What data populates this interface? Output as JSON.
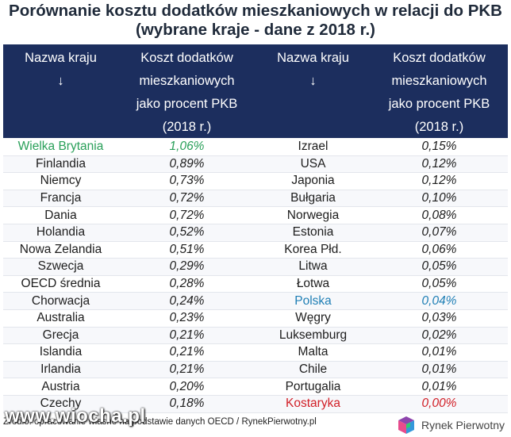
{
  "title_line1": "Porównanie kosztu dodatków mieszkaniowych w relacji do PKB",
  "title_line2": "(wybrane kraje - dane z 2018 r.)",
  "headers": {
    "country": "Nazwa kraju",
    "arrow": "↓",
    "cost_l1": "Koszt dodatków",
    "cost_l2": "mieszkaniowych",
    "cost_l3": "jako procent PKB",
    "cost_l4": "(2018 r.)"
  },
  "colors": {
    "header_bg": "#1c2e5e",
    "highlight_green": "#2aa05a",
    "highlight_blue": "#1f7fb5",
    "highlight_red": "#d11f27"
  },
  "rows": [
    {
      "left_country": "Wielka Brytania",
      "left_value": "1,06%",
      "left_color": "#2aa05a",
      "right_country": "Izrael",
      "right_value": "0,15%",
      "right_color": ""
    },
    {
      "left_country": "Finlandia",
      "left_value": "0,89%",
      "left_color": "",
      "right_country": "USA",
      "right_value": "0,12%",
      "right_color": ""
    },
    {
      "left_country": "Niemcy",
      "left_value": "0,73%",
      "left_color": "",
      "right_country": "Japonia",
      "right_value": "0,12%",
      "right_color": ""
    },
    {
      "left_country": "Francja",
      "left_value": "0,72%",
      "left_color": "",
      "right_country": "Bułgaria",
      "right_value": "0,10%",
      "right_color": ""
    },
    {
      "left_country": "Dania",
      "left_value": "0,72%",
      "left_color": "",
      "right_country": "Norwegia",
      "right_value": "0,08%",
      "right_color": ""
    },
    {
      "left_country": "Holandia",
      "left_value": "0,52%",
      "left_color": "",
      "right_country": "Estonia",
      "right_value": "0,07%",
      "right_color": ""
    },
    {
      "left_country": "Nowa Zelandia",
      "left_value": "0,51%",
      "left_color": "",
      "right_country": "Korea Płd.",
      "right_value": "0,06%",
      "right_color": ""
    },
    {
      "left_country": "Szwecja",
      "left_value": "0,29%",
      "left_color": "",
      "right_country": "Litwa",
      "right_value": "0,05%",
      "right_color": ""
    },
    {
      "left_country": "OECD średnia",
      "left_value": "0,28%",
      "left_color": "",
      "right_country": "Łotwa",
      "right_value": "0,05%",
      "right_color": ""
    },
    {
      "left_country": "Chorwacja",
      "left_value": "0,24%",
      "left_color": "",
      "right_country": "Polska",
      "right_value": "0,04%",
      "right_color": "#1f7fb5"
    },
    {
      "left_country": "Australia",
      "left_value": "0,23%",
      "left_color": "",
      "right_country": "Węgry",
      "right_value": "0,03%",
      "right_color": ""
    },
    {
      "left_country": "Grecja",
      "left_value": "0,21%",
      "left_color": "",
      "right_country": "Luksemburg",
      "right_value": "0,02%",
      "right_color": ""
    },
    {
      "left_country": "Islandia",
      "left_value": "0,21%",
      "left_color": "",
      "right_country": "Malta",
      "right_value": "0,01%",
      "right_color": ""
    },
    {
      "left_country": "Irlandia",
      "left_value": "0,21%",
      "left_color": "",
      "right_country": "Chile",
      "right_value": "0,01%",
      "right_color": ""
    },
    {
      "left_country": "Austria",
      "left_value": "0,20%",
      "left_color": "",
      "right_country": "Portugalia",
      "right_value": "0,01%",
      "right_color": ""
    },
    {
      "left_country": "Czechy",
      "left_value": "0,18%",
      "left_color": "",
      "right_country": "Kostaryka",
      "right_value": "0,00%",
      "right_color": "#d11f27"
    }
  ],
  "footer": {
    "source": "Źródło: opracowanie własne na podstawie danych OECD / RynekPierwotny.pl",
    "watermark": "www.wiocha.pl",
    "brand": "Rynek Pierwotny",
    "brand_logo_icon": "cube-logo-icon"
  }
}
